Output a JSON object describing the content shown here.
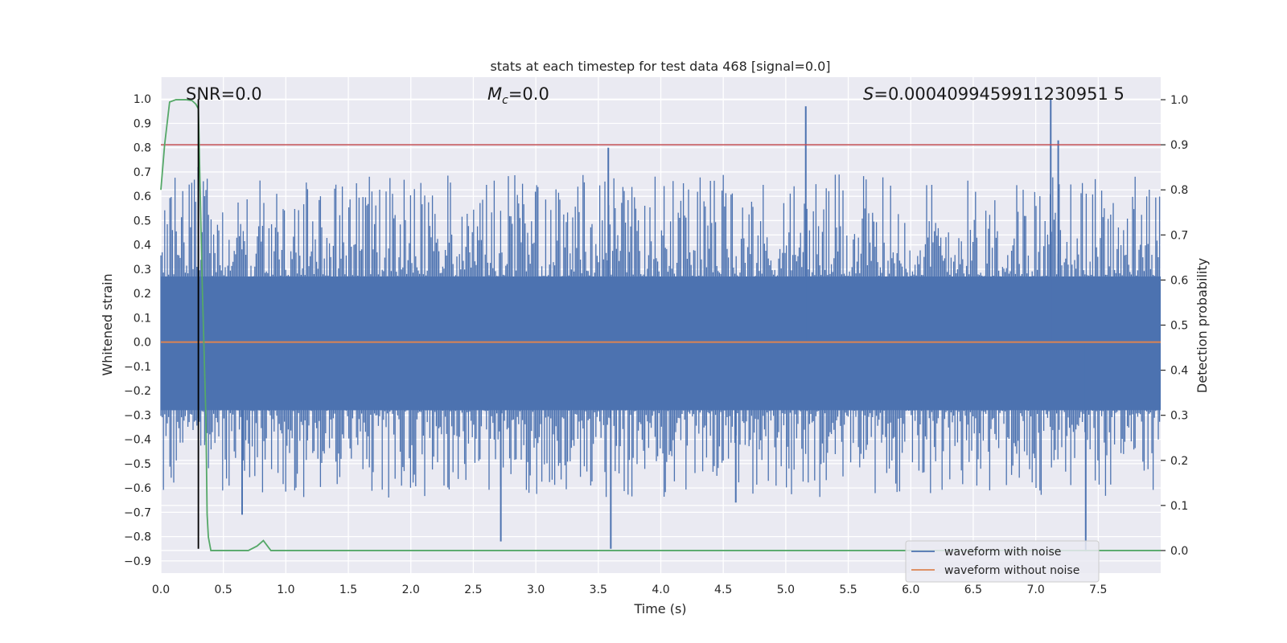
{
  "chart_data": {
    "type": "line",
    "title": "stats at each timestep for test data 468 [signal=0.0]",
    "xlabel": "Time (s)",
    "ylabel_left": "Whitened strain",
    "ylabel_right": "Detection probability",
    "xlim": [
      0.0,
      8.0
    ],
    "ylim_left": [
      -0.95,
      1.09
    ],
    "ylim_right": [
      -0.05,
      1.05
    ],
    "x_ticks": [
      "0.0",
      "0.5",
      "1.0",
      "1.5",
      "2.0",
      "2.5",
      "3.0",
      "3.5",
      "4.0",
      "4.5",
      "5.0",
      "5.5",
      "6.0",
      "6.5",
      "7.0",
      "7.5"
    ],
    "y_left_ticks": [
      "-0.9",
      "-0.8",
      "-0.7",
      "-0.6",
      "-0.5",
      "-0.4",
      "-0.3",
      "-0.2",
      "-0.1",
      "0.0",
      "0.1",
      "0.2",
      "0.3",
      "0.4",
      "0.5",
      "0.6",
      "0.7",
      "0.8",
      "0.9",
      "1.0"
    ],
    "y_right_ticks": [
      "0.0",
      "0.1",
      "0.2",
      "0.3",
      "0.4",
      "0.5",
      "0.6",
      "0.7",
      "0.8",
      "0.9",
      "1.0"
    ],
    "grid": true,
    "legend_position": "lower-right",
    "annotations": {
      "snr": "SNR=0.0",
      "mc_symbol": "M",
      "mc_sub": "c",
      "mc_value": "=0.0",
      "s_symbol": "S",
      "s_value": "=0.0004099459911230951 5"
    },
    "series": [
      {
        "name": "waveform with noise",
        "axis": "left",
        "color": "#4c72b0",
        "envelope_upper": 0.27,
        "envelope_lower": -0.28,
        "spikes": [
          [
            0.3,
            0.72
          ],
          [
            3.58,
            0.8
          ],
          [
            5.16,
            0.97
          ],
          [
            7.12,
            1.0
          ],
          [
            7.18,
            0.83
          ],
          [
            2.72,
            -0.82
          ],
          [
            3.6,
            -0.85
          ],
          [
            7.4,
            -0.86
          ],
          [
            0.65,
            -0.71
          ],
          [
            4.6,
            -0.66
          ]
        ]
      },
      {
        "name": "waveform without noise",
        "axis": "left",
        "color": "#dd8452",
        "values_x": [
          0.0,
          8.0
        ],
        "values_y": [
          0.0,
          0.0
        ]
      },
      {
        "name": "Detection probability",
        "axis": "right",
        "color": "#55a868",
        "x": [
          0.0,
          0.03,
          0.07,
          0.12,
          0.2,
          0.25,
          0.28,
          0.3,
          0.33,
          0.36,
          0.37,
          0.38,
          0.4,
          0.7,
          0.77,
          0.82,
          0.88,
          1.2,
          8.0
        ],
        "y": [
          0.8,
          0.9,
          0.995,
          1.0,
          1.0,
          0.998,
          0.99,
          0.98,
          0.6,
          0.3,
          0.08,
          0.03,
          0.0,
          0.0,
          0.01,
          0.022,
          0.0,
          0.0,
          0.0
        ]
      },
      {
        "name": "threshold",
        "axis": "right",
        "color": "#c44e52",
        "values_x": [
          0.0,
          8.0
        ],
        "values_y": [
          0.9,
          0.9
        ]
      },
      {
        "name": "marker",
        "axis": "left",
        "color": "#000000",
        "values_x": [
          0.3,
          0.3
        ],
        "values_y": [
          -0.85,
          1.0
        ]
      }
    ]
  }
}
